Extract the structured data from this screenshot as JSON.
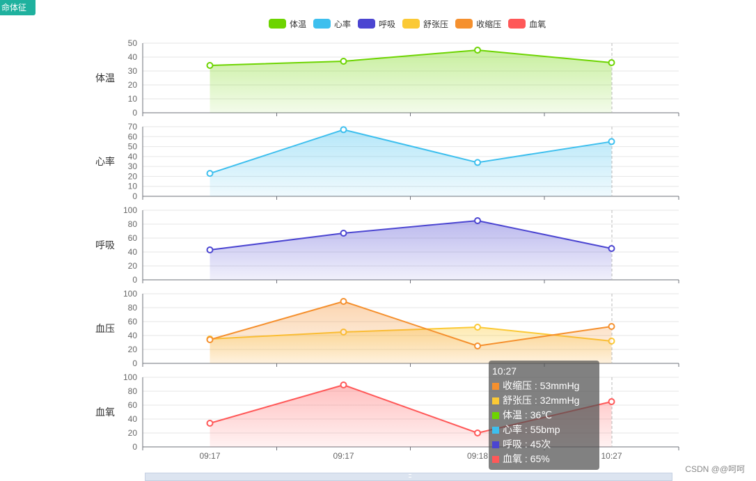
{
  "header": {
    "tag_label": "命体征"
  },
  "legend": [
    {
      "name": "体温",
      "color": "#6dd400"
    },
    {
      "name": "心率",
      "color": "#3dbfee"
    },
    {
      "name": "呼吸",
      "color": "#4b45d1"
    },
    {
      "name": "舒张压",
      "color": "#fbc935"
    },
    {
      "name": "收缩压",
      "color": "#f5902e"
    },
    {
      "name": "血氧",
      "color": "#ff5858"
    }
  ],
  "chart_data": {
    "type": "area",
    "categories": [
      "09:17",
      "09:17",
      "09:18",
      "10:27"
    ],
    "grid": true,
    "legend_position": "top-center",
    "panels": [
      {
        "label": "体温",
        "ylim": [
          0,
          50
        ],
        "ticks": [
          0,
          10,
          20,
          30,
          40,
          50
        ],
        "series": [
          {
            "name": "体温",
            "color": "#6dd400",
            "values": [
              34,
              37,
              45,
              36
            ]
          }
        ]
      },
      {
        "label": "心率",
        "ylim": [
          0,
          70
        ],
        "ticks": [
          0,
          10,
          20,
          30,
          40,
          50,
          60,
          70
        ],
        "series": [
          {
            "name": "心率",
            "color": "#3dbfee",
            "values": [
              23,
              67,
              34,
              55
            ]
          }
        ]
      },
      {
        "label": "呼吸",
        "ylim": [
          0,
          100
        ],
        "ticks": [
          0,
          20,
          40,
          60,
          80,
          100
        ],
        "series": [
          {
            "name": "呼吸",
            "color": "#4b45d1",
            "values": [
              43,
              67,
              85,
              45
            ]
          }
        ]
      },
      {
        "label": "血压",
        "ylim": [
          0,
          100
        ],
        "ticks": [
          0,
          20,
          40,
          60,
          80,
          100
        ],
        "series": [
          {
            "name": "舒张压",
            "color": "#fbc935",
            "values": [
              35,
              45,
              52,
              32
            ]
          },
          {
            "name": "收缩压",
            "color": "#f5902e",
            "values": [
              34,
              89,
              25,
              53
            ]
          }
        ]
      },
      {
        "label": "血氧",
        "ylim": [
          0,
          100
        ],
        "ticks": [
          0,
          20,
          40,
          60,
          80,
          100
        ],
        "series": [
          {
            "name": "血氧",
            "color": "#ff5858",
            "values": [
              34,
              89,
              20,
              65
            ]
          }
        ]
      }
    ]
  },
  "tooltip": {
    "time": "10:27",
    "rows": [
      {
        "color": "#f5902e",
        "text": "收缩压 : 53mmHg"
      },
      {
        "color": "#fbc935",
        "text": "舒张压 : 32mmHg"
      },
      {
        "color": "#6dd400",
        "text": "体温 : 36℃"
      },
      {
        "color": "#3dbfee",
        "text": "心率 : 55bmp"
      },
      {
        "color": "#4b45d1",
        "text": "呼吸 : 45次"
      },
      {
        "color": "#ff5858",
        "text": "血氧 : 65%"
      }
    ]
  },
  "footer": {
    "watermark": "CSDN @@呵呵"
  }
}
